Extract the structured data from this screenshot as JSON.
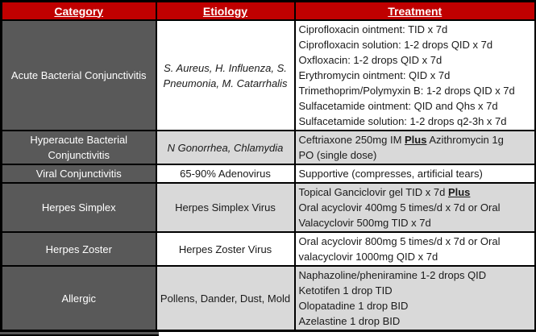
{
  "table": {
    "colors": {
      "header_bg": "#C00000",
      "header_text": "#FFFFFF",
      "category_bg": "#595959",
      "category_text": "#FFFFFF",
      "shaded_bg": "#D9D9D9",
      "row_bg": "#FFFFFF",
      "border": "#000000"
    },
    "headers": [
      {
        "label": "Category"
      },
      {
        "label": "Etiology"
      },
      {
        "label": "Treatment"
      }
    ],
    "rows": [
      {
        "category": "Acute Bacterial Conjunctivitis",
        "etiology": "S. Aureus, H. Influenza, S. Pneumonia, M. Catarrhalis",
        "etiology_italic": true,
        "shaded": false,
        "treatment_lines": [
          [
            {
              "text": "Ciprofloxacin ointment: TID x 7d"
            }
          ],
          [
            {
              "text": "Ciprofloxacin solution: 1-2 drops QID x 7d"
            }
          ],
          [
            {
              "text": "Oxfloxacin: 1-2 drops QID x 7d"
            }
          ],
          [
            {
              "text": "Erythromycin ointment: QID x 7d"
            }
          ],
          [
            {
              "text": "Trimethoprim/Polymyxin B: 1-2 drops QID x 7d"
            }
          ],
          [
            {
              "text": "Sulfacetamide ointment: QID and Qhs x 7d"
            }
          ],
          [
            {
              "text": "Sulfacetamide solution: 1-2 drops q2-3h x 7d"
            }
          ]
        ]
      },
      {
        "category": "Hyperacute Bacterial Conjunctivitis",
        "etiology": "N Gonorrhea, Chlamydia",
        "etiology_italic": true,
        "shaded": true,
        "treatment_lines": [
          [
            {
              "text": "Ceftriaxone 250mg IM "
            },
            {
              "text": "Plus",
              "emphasis": true
            },
            {
              "text": " Azithromycin 1g"
            }
          ],
          [
            {
              "text": "PO (single dose)"
            }
          ]
        ]
      },
      {
        "category": "Viral Conjunctivitis",
        "etiology": "65-90% Adenovirus",
        "etiology_italic": false,
        "shaded": false,
        "treatment_lines": [
          [
            {
              "text": "Supportive (compresses, artificial tears)"
            }
          ]
        ]
      },
      {
        "category": "Herpes Simplex",
        "etiology": "Herpes Simplex Virus",
        "etiology_italic": false,
        "shaded": true,
        "treatment_lines": [
          [
            {
              "text": "Topical Ganciclovir gel TID x 7d "
            },
            {
              "text": "Plus",
              "emphasis": true
            }
          ],
          [
            {
              "text": "Oral acyclovir 400mg 5 times/d x 7d or Oral"
            }
          ],
          [
            {
              "text": "Valacyclovir 500mg TID x 7d"
            }
          ]
        ]
      },
      {
        "category": "Herpes Zoster",
        "etiology": "Herpes Zoster Virus",
        "etiology_italic": false,
        "shaded": false,
        "treatment_lines": [
          [
            {
              "text": "Oral acyclovir 800mg 5 times/d x 7d or Oral"
            }
          ],
          [
            {
              "text": "valacyclovir 1000mg QID x 7d"
            }
          ]
        ]
      },
      {
        "category": "Allergic",
        "etiology": "Pollens, Dander, Dust, Mold",
        "etiology_italic": false,
        "shaded": true,
        "treatment_lines": [
          [
            {
              "text": "Naphazoline/pheniramine 1-2 drops QID"
            }
          ],
          [
            {
              "text": "Ketotifen 1 drop TID"
            }
          ],
          [
            {
              "text": "Olopatadine 1 drop BID"
            }
          ],
          [
            {
              "text": "Azelastine 1 drop BID"
            }
          ]
        ]
      }
    ]
  }
}
